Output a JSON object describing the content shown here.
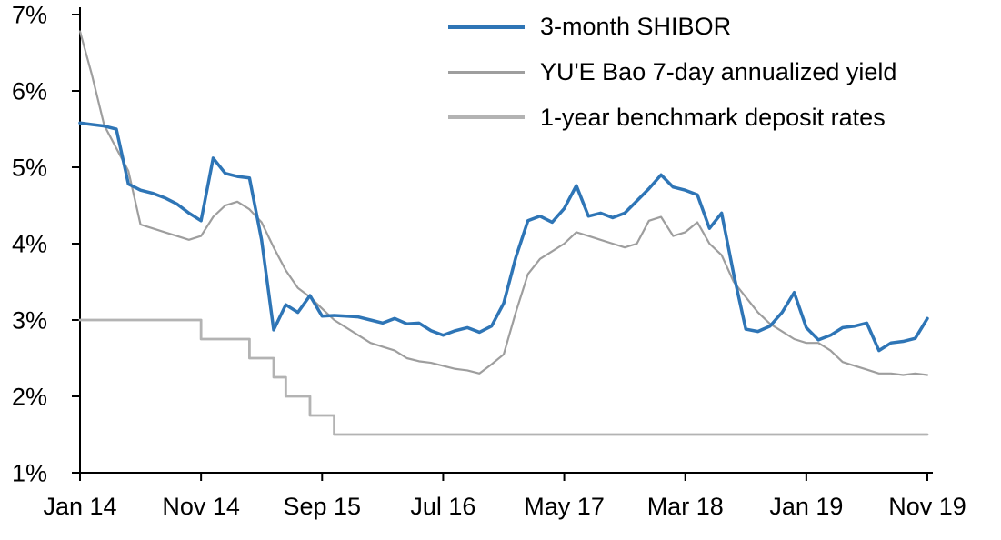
{
  "chart_data": {
    "type": "line",
    "title": "",
    "xlabel": "",
    "ylabel": "",
    "grid": false,
    "legend_position": "top-center",
    "axis_color": "#000000",
    "xlim": [
      0,
      70
    ],
    "ylim": [
      1,
      7
    ],
    "x_unit": "month index from Jan 2014 (0) to Nov 2019 (70)",
    "x_ticks": {
      "positions": [
        0,
        10,
        20,
        30,
        40,
        50,
        60,
        70
      ],
      "labels": [
        "Jan 14",
        "Nov 14",
        "Sep 15",
        "Jul 16",
        "May 17",
        "Mar 18",
        "Jan 19",
        "Nov 19"
      ]
    },
    "y_ticks": {
      "values": [
        1,
        2,
        3,
        4,
        5,
        6,
        7
      ],
      "labels": [
        "1%",
        "2%",
        "3%",
        "4%",
        "5%",
        "6%",
        "7%"
      ]
    },
    "series": [
      {
        "name": "3-month SHIBOR",
        "color": "#2E75B6",
        "width": 3.5,
        "style": "line",
        "values": [
          5.58,
          5.56,
          5.54,
          5.5,
          4.78,
          4.7,
          4.66,
          4.6,
          4.52,
          4.4,
          4.3,
          5.12,
          4.92,
          4.88,
          4.86,
          4.05,
          2.87,
          3.2,
          3.1,
          3.32,
          3.05,
          3.06,
          3.05,
          3.04,
          3.0,
          2.96,
          3.02,
          2.95,
          2.96,
          2.86,
          2.8,
          2.86,
          2.9,
          2.84,
          2.92,
          3.22,
          3.82,
          4.3,
          4.36,
          4.28,
          4.46,
          4.76,
          4.36,
          4.4,
          4.34,
          4.4,
          4.56,
          4.72,
          4.9,
          4.74,
          4.7,
          4.64,
          4.2,
          4.4,
          3.6,
          2.88,
          2.85,
          2.92,
          3.1,
          3.36,
          2.9,
          2.74,
          2.8,
          2.9,
          2.92,
          2.96,
          2.6,
          2.7,
          2.72,
          2.76,
          3.02
        ]
      },
      {
        "name": "YU'E Bao 7-day annualized yield",
        "color": "#9E9E9E",
        "width": 2.2,
        "style": "line",
        "values": [
          6.78,
          6.2,
          5.55,
          5.25,
          4.95,
          4.25,
          4.2,
          4.15,
          4.1,
          4.05,
          4.1,
          4.35,
          4.5,
          4.55,
          4.45,
          4.28,
          3.95,
          3.65,
          3.42,
          3.3,
          3.15,
          3.0,
          2.9,
          2.8,
          2.7,
          2.65,
          2.6,
          2.5,
          2.46,
          2.44,
          2.4,
          2.36,
          2.34,
          2.3,
          2.42,
          2.55,
          3.1,
          3.6,
          3.8,
          3.9,
          4.0,
          4.15,
          4.1,
          4.05,
          4.0,
          3.95,
          4.0,
          4.3,
          4.35,
          4.1,
          4.15,
          4.28,
          4.0,
          3.85,
          3.5,
          3.3,
          3.1,
          2.95,
          2.85,
          2.75,
          2.7,
          2.7,
          2.6,
          2.45,
          2.4,
          2.35,
          2.3,
          2.3,
          2.28,
          2.3,
          2.28
        ]
      },
      {
        "name": "1-year benchmark deposit rates",
        "color": "#B3B3B3",
        "width": 2.8,
        "style": "step",
        "values": [
          3,
          3,
          3,
          3,
          3,
          3,
          3,
          3,
          3,
          3,
          2.75,
          2.75,
          2.75,
          2.75,
          2.5,
          2.5,
          2.25,
          2,
          2,
          1.75,
          1.75,
          1.5,
          1.5,
          1.5,
          1.5,
          1.5,
          1.5,
          1.5,
          1.5,
          1.5,
          1.5,
          1.5,
          1.5,
          1.5,
          1.5,
          1.5,
          1.5,
          1.5,
          1.5,
          1.5,
          1.5,
          1.5,
          1.5,
          1.5,
          1.5,
          1.5,
          1.5,
          1.5,
          1.5,
          1.5,
          1.5,
          1.5,
          1.5,
          1.5,
          1.5,
          1.5,
          1.5,
          1.5,
          1.5,
          1.5,
          1.5,
          1.5,
          1.5,
          1.5,
          1.5,
          1.5,
          1.5,
          1.5,
          1.5,
          1.5,
          1.5
        ]
      }
    ]
  }
}
